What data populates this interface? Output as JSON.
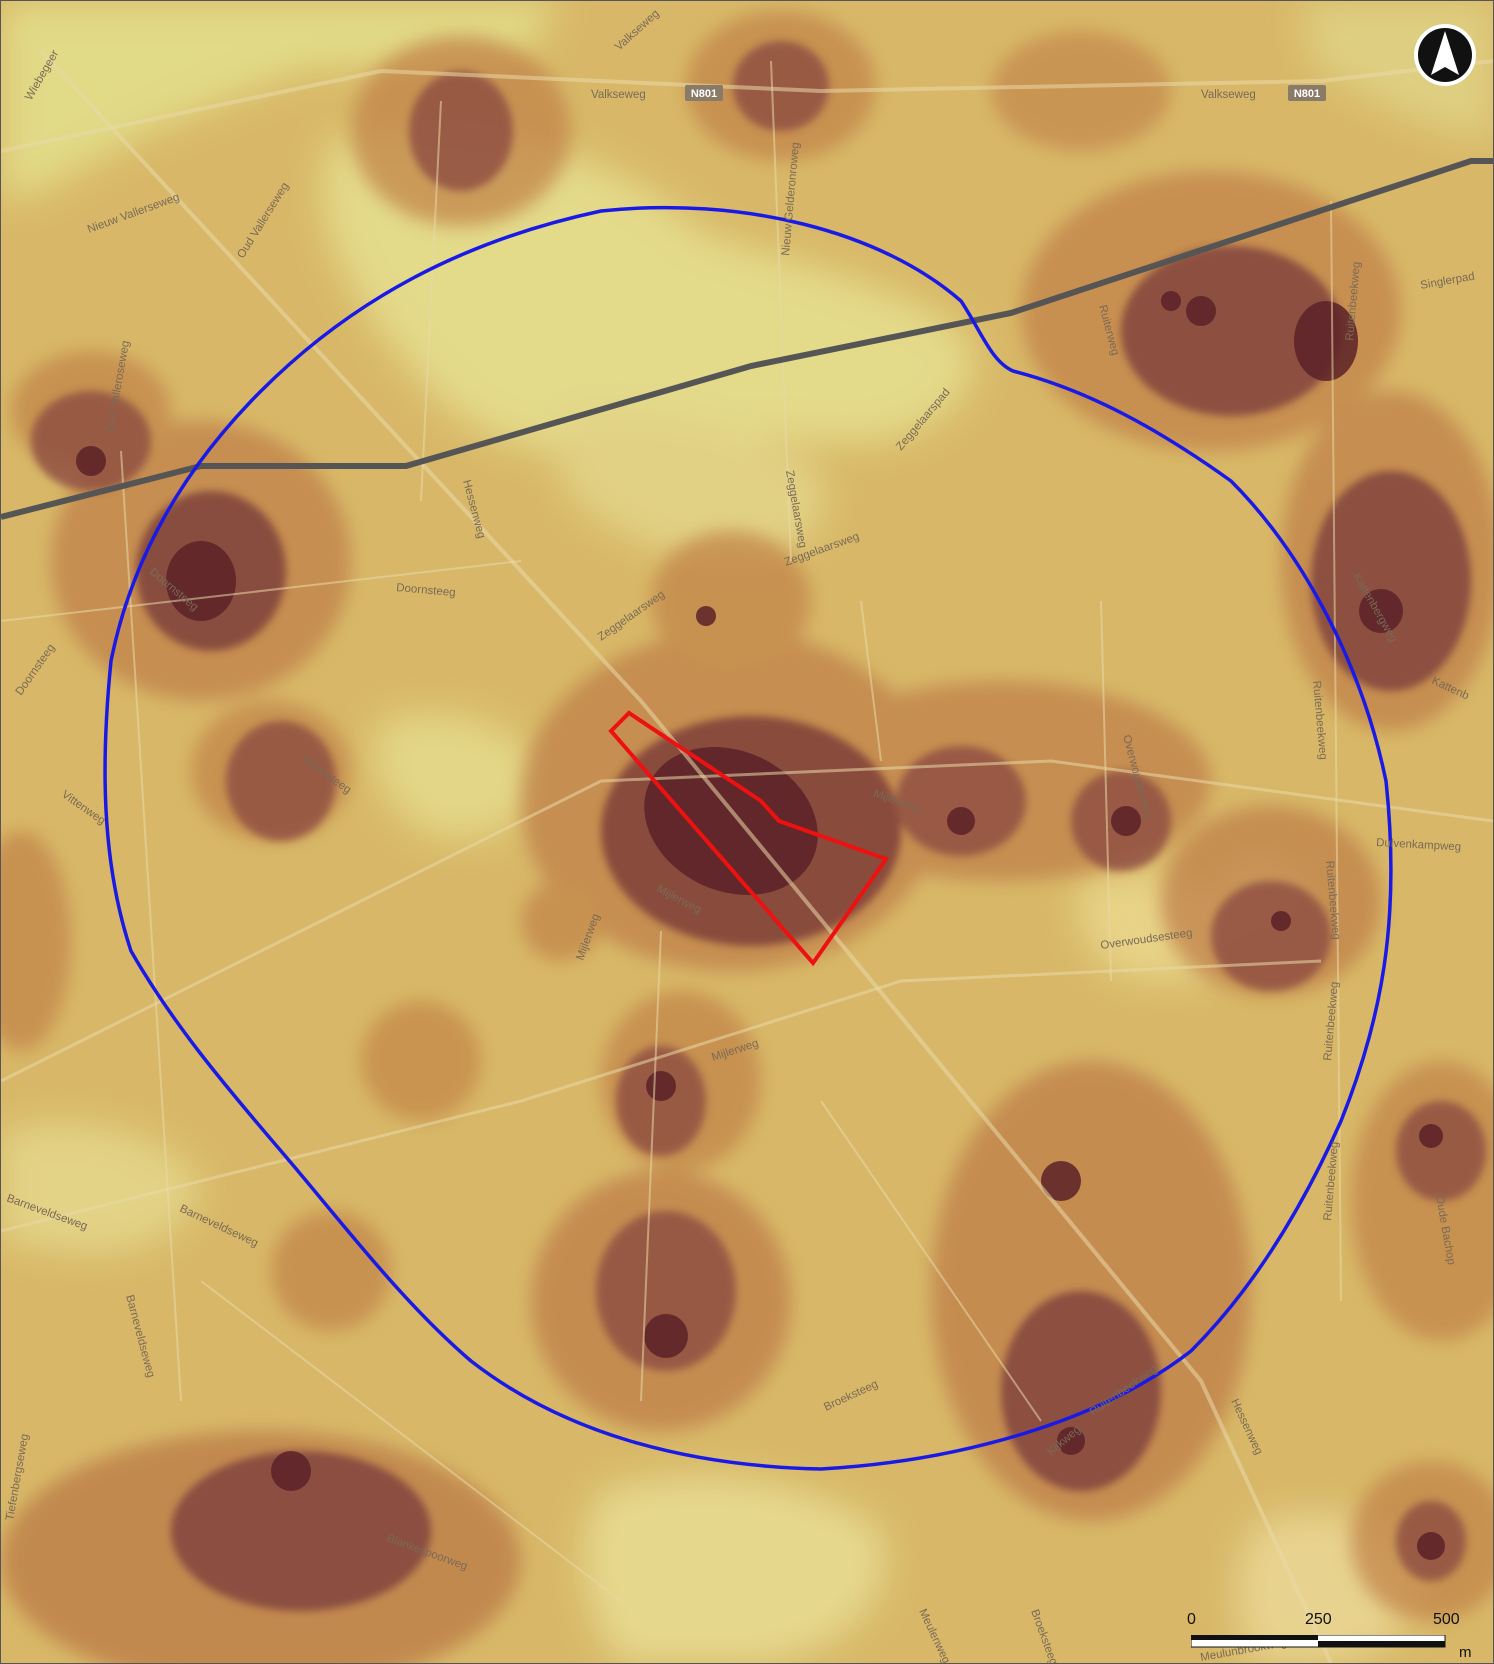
{
  "map": {
    "colors": {
      "base": "#d8b868",
      "low": "#e7df8a",
      "mid": "#c7904e",
      "high": "#8c4d40",
      "peak": "#5c2228",
      "buffer_circle": "#1a1ae6",
      "plan_area": "#ee1111",
      "line_feature": "#555555"
    },
    "road_labels": [
      {
        "id": "valkseweg-1",
        "text": "Valkseweg"
      },
      {
        "id": "valkseweg-2",
        "text": "Valkseweg"
      },
      {
        "id": "valkseweg-3",
        "text": "Valkseweg"
      },
      {
        "id": "nieuw-vallerseweg",
        "text": "Nieuw Vallerseweg"
      },
      {
        "id": "oud-vallerseweg",
        "text": "Oud Vallerseweg"
      },
      {
        "id": "oud-valleroseweg",
        "text": "Oud Valleroseweg"
      },
      {
        "id": "wiebegeer",
        "text": "Wiebegeer"
      },
      {
        "id": "nieuw-gelderonroweg",
        "text": "Nieuw Gelderonroweg"
      },
      {
        "id": "zeggelaarsweg-1",
        "text": "Zeggelaarsweg"
      },
      {
        "id": "zeggelaarsweg-2",
        "text": "Zeggelaarsweg"
      },
      {
        "id": "zeggelaarsweg-3",
        "text": "Zeggelaarsweg"
      },
      {
        "id": "zeggelaarspad",
        "text": "Zeggelaarspad"
      },
      {
        "id": "hessenweg-1",
        "text": "Hessenweg"
      },
      {
        "id": "hessenweg-2",
        "text": "Hessenweg"
      },
      {
        "id": "doornsteeg-1",
        "text": "Doornsteeg"
      },
      {
        "id": "doornsteeg-2",
        "text": "Doornsteeg"
      },
      {
        "id": "doornsteeg-3",
        "text": "Doornsteeg"
      },
      {
        "id": "vittensteeg",
        "text": "Vittensteeg"
      },
      {
        "id": "vittenweg",
        "text": "Vittenweg"
      },
      {
        "id": "mijlerweg-1",
        "text": "Mijlerweg"
      },
      {
        "id": "mijlerweg-2",
        "text": "Mijlerweg"
      },
      {
        "id": "mijlerweg-3",
        "text": "Mijlerweg"
      },
      {
        "id": "barneveldseweg-1",
        "text": "Barneveldseweg"
      },
      {
        "id": "barneveldseweg-2",
        "text": "Barneveldseweg"
      },
      {
        "id": "barneveldseweg-3",
        "text": "Barneveldseweg"
      },
      {
        "id": "broeksteeg-1",
        "text": "Broeksteeg"
      },
      {
        "id": "broeksteeg-2",
        "text": "Broeksteeg"
      },
      {
        "id": "ruitenbeekweg-1",
        "text": "Ruitenbeekweg"
      },
      {
        "id": "ruitenbeekweg-2",
        "text": "Ruitenbeekweg"
      },
      {
        "id": "ruitenbeekweg-3",
        "text": "Ruitenbeekweg"
      },
      {
        "id": "ruitenbeekweg-4",
        "text": "Ruitenbeekweg"
      },
      {
        "id": "ruitenbeekweg-5",
        "text": "Ruitenbeekweg"
      },
      {
        "id": "ruitenbeekweg-6",
        "text": "Ruitenbeekweg"
      },
      {
        "id": "overwoudseweg",
        "text": "Overwoudseweg"
      },
      {
        "id": "overwoudsesteeg",
        "text": "Overwoudsesteeg"
      },
      {
        "id": "dulvenkampweg",
        "text": "Dulvenkampweg"
      },
      {
        "id": "kattenbergweg",
        "text": "Kattenbergweg"
      },
      {
        "id": "kattenb",
        "text": "Kattenb"
      },
      {
        "id": "singlerpad",
        "text": "Singlerpad"
      },
      {
        "id": "ruiterweg",
        "text": "Ruiterweg"
      },
      {
        "id": "oude-bachop",
        "text": "Oude Bachop"
      },
      {
        "id": "kijkweg",
        "text": "Kijkweg"
      },
      {
        "id": "blankespoorweg",
        "text": "Blankespoorweg"
      },
      {
        "id": "meulunbrookweg",
        "text": "Meulunbrookweg"
      },
      {
        "id": "tiefenbergseweg",
        "text": "Tiefenbergseweg"
      },
      {
        "id": "meulenweg",
        "text": "Meulenweg"
      },
      {
        "id": "mijlerweg-4",
        "text": "Mijlerweg"
      }
    ],
    "route_shields": [
      {
        "id": "n801-1",
        "text": "N801"
      },
      {
        "id": "n801-2",
        "text": "N801"
      }
    ]
  },
  "scalebar": {
    "tick_labels": [
      "0",
      "250",
      "500"
    ],
    "unit": "m"
  },
  "north_arrow": {
    "icon": "north-arrow-icon"
  }
}
